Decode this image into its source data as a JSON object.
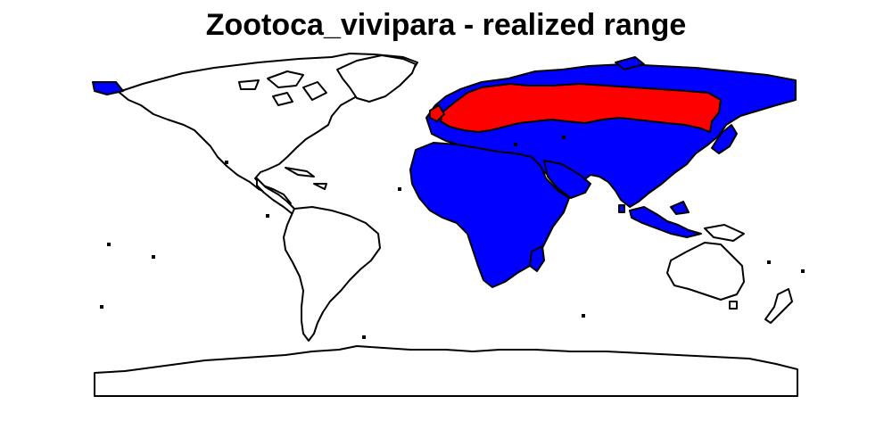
{
  "title": "Zootoca_vivipara - realized range",
  "colors": {
    "background": "#ffffff",
    "land": "#ffffff",
    "realized_range": "#ff0000",
    "potential_range": "#0000ff",
    "outline": "#000000"
  }
}
